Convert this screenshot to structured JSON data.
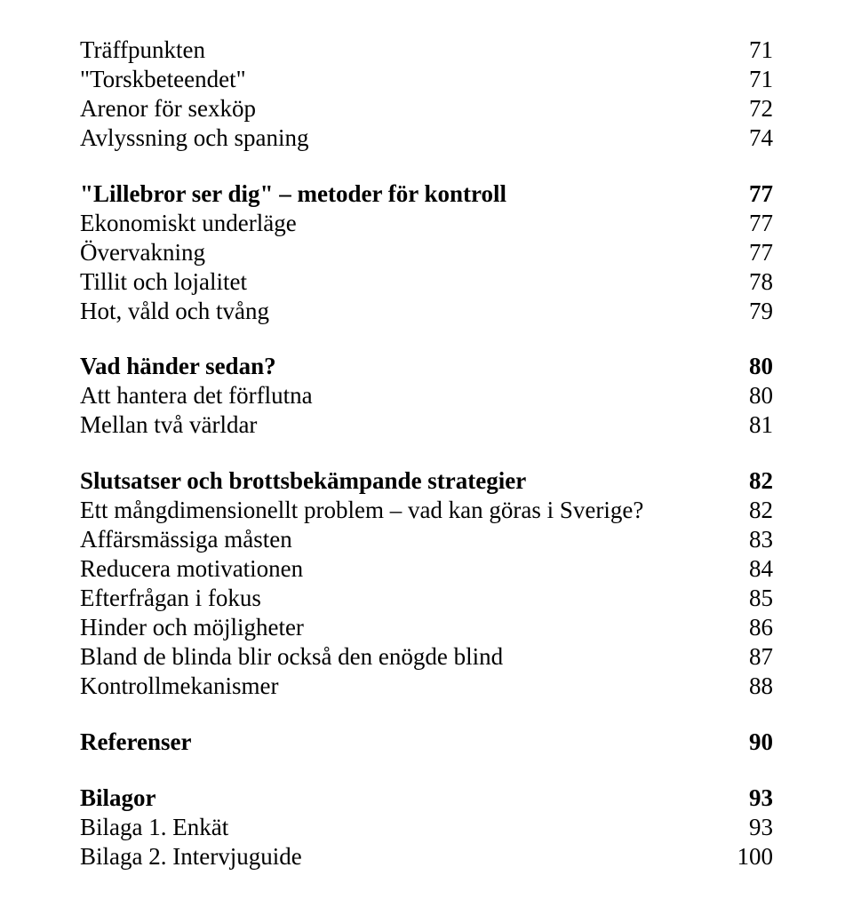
{
  "text_color": "#000000",
  "background_color": "#ffffff",
  "font_family": "Times New Roman",
  "base_fontsize_pt": 20,
  "toc": [
    {
      "label": "Träffpunkten",
      "page": "71",
      "style": "regular",
      "gap_after": 0
    },
    {
      "label": "\"Torskbeteendet\"",
      "page": "71",
      "style": "regular",
      "gap_after": 0
    },
    {
      "label": "Arenor för sexköp",
      "page": "72",
      "style": "regular",
      "gap_after": 0
    },
    {
      "label": "Avlyssning och spaning",
      "page": "74",
      "style": "regular",
      "gap_after": 30
    },
    {
      "label": "\"Lillebror ser dig\" – metoder för kontroll",
      "page": "77",
      "style": "semibold",
      "gap_after": 0
    },
    {
      "label": "Ekonomiskt underläge",
      "page": "77",
      "style": "regular",
      "gap_after": 0
    },
    {
      "label": "Övervakning",
      "page": "77",
      "style": "regular",
      "gap_after": 0
    },
    {
      "label": "Tillit och lojalitet",
      "page": "78",
      "style": "regular",
      "gap_after": 0
    },
    {
      "label": "Hot, våld och tvång",
      "page": "79",
      "style": "regular",
      "gap_after": 30
    },
    {
      "label": "Vad händer sedan?",
      "page": "80",
      "style": "semibold",
      "gap_after": 0
    },
    {
      "label": "Att hantera det förflutna",
      "page": "80",
      "style": "regular",
      "gap_after": 0
    },
    {
      "label": "Mellan två världar",
      "page": "81",
      "style": "regular",
      "gap_after": 30
    },
    {
      "label": "Slutsatser och brottsbekämpande strategier",
      "page": "82",
      "style": "semibold",
      "gap_after": 0
    },
    {
      "label": "Ett mångdimensionellt problem – vad kan göras i Sverige?",
      "page": "82",
      "style": "regular",
      "gap_after": 0
    },
    {
      "label": "Affärsmässiga måsten",
      "page": "83",
      "style": "regular",
      "gap_after": 0
    },
    {
      "label": "Reducera motivationen",
      "page": "84",
      "style": "regular",
      "gap_after": 0
    },
    {
      "label": "Efterfrågan i fokus",
      "page": "85",
      "style": "regular",
      "gap_after": 0
    },
    {
      "label": "Hinder och möjligheter",
      "page": "86",
      "style": "regular",
      "gap_after": 0
    },
    {
      "label": "Bland de blinda blir också den enögde blind",
      "page": "87",
      "style": "regular",
      "gap_after": 0
    },
    {
      "label": "Kontrollmekanismer",
      "page": "88",
      "style": "regular",
      "gap_after": 30
    },
    {
      "label": "Referenser",
      "page": "90",
      "style": "bold",
      "gap_after": 30
    },
    {
      "label": "Bilagor",
      "page": "93",
      "style": "bold",
      "gap_after": 0
    },
    {
      "label": "Bilaga 1. Enkät",
      "page": "93",
      "style": "regular",
      "gap_after": 0
    },
    {
      "label": "Bilaga 2. Intervjuguide",
      "page": "100",
      "style": "regular",
      "gap_after": 0
    }
  ]
}
